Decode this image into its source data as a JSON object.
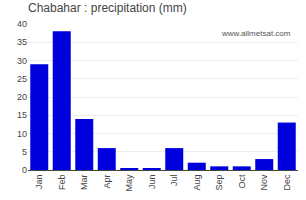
{
  "chart_data": {
    "type": "bar",
    "title": "Chabahar : precipitation (mm)",
    "categories": [
      "Jan",
      "Feb",
      "Mar",
      "Apr",
      "May",
      "Jun",
      "Jul",
      "Aug",
      "Sep",
      "Oct",
      "Nov",
      "Dec"
    ],
    "values": [
      29,
      38,
      14,
      6,
      0.5,
      0.5,
      6,
      2,
      1,
      1,
      3,
      13
    ],
    "color": "#0000DD",
    "ylim": [
      0,
      40
    ],
    "yticks": [
      0,
      5,
      10,
      15,
      20,
      25,
      30,
      35,
      40
    ],
    "grid": true,
    "annotations": [
      "www.allmetsat.com"
    ]
  }
}
